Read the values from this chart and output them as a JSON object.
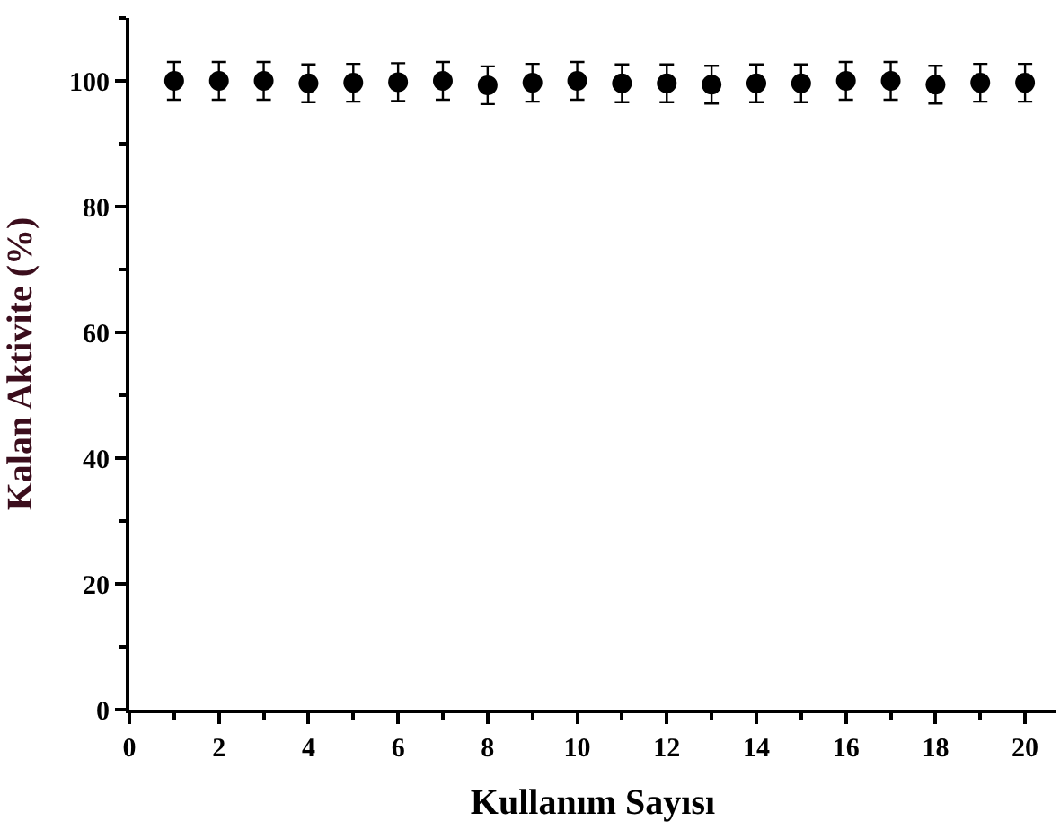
{
  "chart_data": {
    "type": "scatter",
    "xlabel": "Kullanım Sayısı",
    "ylabel": "Kalan Aktivite (%)",
    "x": [
      1,
      2,
      3,
      4,
      5,
      6,
      7,
      8,
      9,
      10,
      11,
      12,
      13,
      14,
      15,
      16,
      17,
      18,
      19,
      20
    ],
    "series": [
      {
        "color": "#000000",
        "values": [
          100,
          100,
          100,
          99.6,
          99.7,
          99.8,
          100,
          99.3,
          99.7,
          100,
          99.6,
          99.6,
          99.4,
          99.6,
          99.6,
          100,
          100,
          99.4,
          99.7,
          99.7
        ],
        "errors": [
          3,
          3,
          3,
          3,
          3,
          3,
          3,
          3,
          3,
          3,
          3,
          3,
          3,
          3,
          3,
          3,
          3,
          3,
          3,
          3
        ]
      }
    ],
    "xlim": [
      0,
      20.7
    ],
    "xticks": [
      0,
      2,
      4,
      6,
      8,
      10,
      12,
      14,
      16,
      18,
      20
    ],
    "ylim": [
      0,
      110
    ],
    "yticks": [
      0,
      20,
      40,
      60,
      80,
      100
    ],
    "marker": "circle"
  }
}
